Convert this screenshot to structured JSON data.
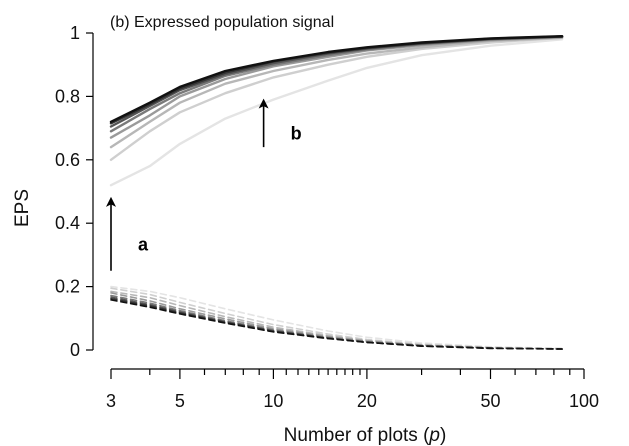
{
  "chart_data": {
    "type": "line",
    "title": "(b) Expressed population signal",
    "xlabel_prefix": "Number of plots (",
    "xlabel_var": "p",
    "xlabel_suffix": ")",
    "ylabel": "EPS",
    "x_scale": "log",
    "xlim": [
      3,
      100
    ],
    "ylim": [
      0,
      1
    ],
    "x_major_ticks": [
      3,
      5,
      10,
      20,
      50,
      100
    ],
    "x_minor_ticks": [
      4,
      6,
      7,
      8,
      9,
      11,
      12,
      13,
      14,
      15,
      16,
      17,
      18,
      19,
      30,
      40,
      60,
      70,
      80,
      90
    ],
    "y_ticks": [
      0,
      0.2,
      0.4,
      0.6,
      0.8,
      1
    ],
    "y_tick_labels": [
      "0",
      "0.2",
      "0.4",
      "0.6",
      "0.8",
      "1"
    ],
    "grid": false,
    "x": [
      3,
      4,
      5,
      7,
      10,
      15,
      20,
      30,
      50,
      85
    ],
    "series": [
      {
        "style": "solid",
        "color": "#e4e4e4",
        "values": [
          0.52,
          0.58,
          0.65,
          0.73,
          0.79,
          0.85,
          0.89,
          0.93,
          0.96,
          0.98
        ]
      },
      {
        "style": "solid",
        "color": "#cfcfcf",
        "values": [
          0.6,
          0.69,
          0.75,
          0.81,
          0.86,
          0.9,
          0.925,
          0.95,
          0.97,
          0.985
        ]
      },
      {
        "style": "solid",
        "color": "#b7b7b7",
        "values": [
          0.64,
          0.72,
          0.78,
          0.84,
          0.88,
          0.915,
          0.935,
          0.955,
          0.975,
          0.985
        ]
      },
      {
        "style": "solid",
        "color": "#9a9a9a",
        "values": [
          0.67,
          0.74,
          0.8,
          0.855,
          0.895,
          0.925,
          0.945,
          0.962,
          0.978,
          0.987
        ]
      },
      {
        "style": "solid",
        "color": "#7a7a7a",
        "values": [
          0.69,
          0.76,
          0.81,
          0.865,
          0.9,
          0.93,
          0.948,
          0.965,
          0.98,
          0.988
        ]
      },
      {
        "style": "solid",
        "color": "#555555",
        "values": [
          0.705,
          0.77,
          0.82,
          0.87,
          0.905,
          0.935,
          0.951,
          0.967,
          0.981,
          0.989
        ]
      },
      {
        "style": "solid",
        "color": "#333333",
        "values": [
          0.715,
          0.775,
          0.825,
          0.875,
          0.91,
          0.938,
          0.953,
          0.968,
          0.982,
          0.989
        ]
      },
      {
        "style": "solid",
        "color": "#111111",
        "values": [
          0.72,
          0.78,
          0.83,
          0.88,
          0.912,
          0.94,
          0.955,
          0.97,
          0.983,
          0.99
        ]
      },
      {
        "style": "dashed",
        "color": "#e4e4e4",
        "values": [
          0.2,
          0.185,
          0.165,
          0.13,
          0.095,
          0.06,
          0.04,
          0.022,
          0.01,
          0.005
        ]
      },
      {
        "style": "dashed",
        "color": "#cfcfcf",
        "values": [
          0.195,
          0.175,
          0.15,
          0.115,
          0.08,
          0.05,
          0.033,
          0.018,
          0.008,
          0.004
        ]
      },
      {
        "style": "dashed",
        "color": "#b7b7b7",
        "values": [
          0.185,
          0.165,
          0.14,
          0.105,
          0.072,
          0.045,
          0.03,
          0.016,
          0.007,
          0.004
        ]
      },
      {
        "style": "dashed",
        "color": "#9a9a9a",
        "values": [
          0.18,
          0.155,
          0.13,
          0.098,
          0.067,
          0.042,
          0.028,
          0.015,
          0.007,
          0.003
        ]
      },
      {
        "style": "dashed",
        "color": "#7a7a7a",
        "values": [
          0.172,
          0.148,
          0.124,
          0.092,
          0.063,
          0.039,
          0.026,
          0.014,
          0.006,
          0.003
        ]
      },
      {
        "style": "dashed",
        "color": "#555555",
        "values": [
          0.167,
          0.143,
          0.12,
          0.089,
          0.061,
          0.038,
          0.025,
          0.013,
          0.006,
          0.003
        ]
      },
      {
        "style": "dashed",
        "color": "#333333",
        "values": [
          0.162,
          0.139,
          0.117,
          0.087,
          0.059,
          0.037,
          0.024,
          0.013,
          0.006,
          0.003
        ]
      },
      {
        "style": "dashed",
        "color": "#111111",
        "values": [
          0.158,
          0.135,
          0.114,
          0.085,
          0.057,
          0.036,
          0.024,
          0.012,
          0.005,
          0.003
        ]
      }
    ],
    "annotations": [
      {
        "label": "a",
        "arrow_x": 3,
        "arrow_from_y": 0.25,
        "arrow_to_y": 0.48
      },
      {
        "label": "b",
        "arrow_x": 9.3,
        "arrow_from_y": 0.64,
        "arrow_to_y": 0.79
      }
    ]
  }
}
